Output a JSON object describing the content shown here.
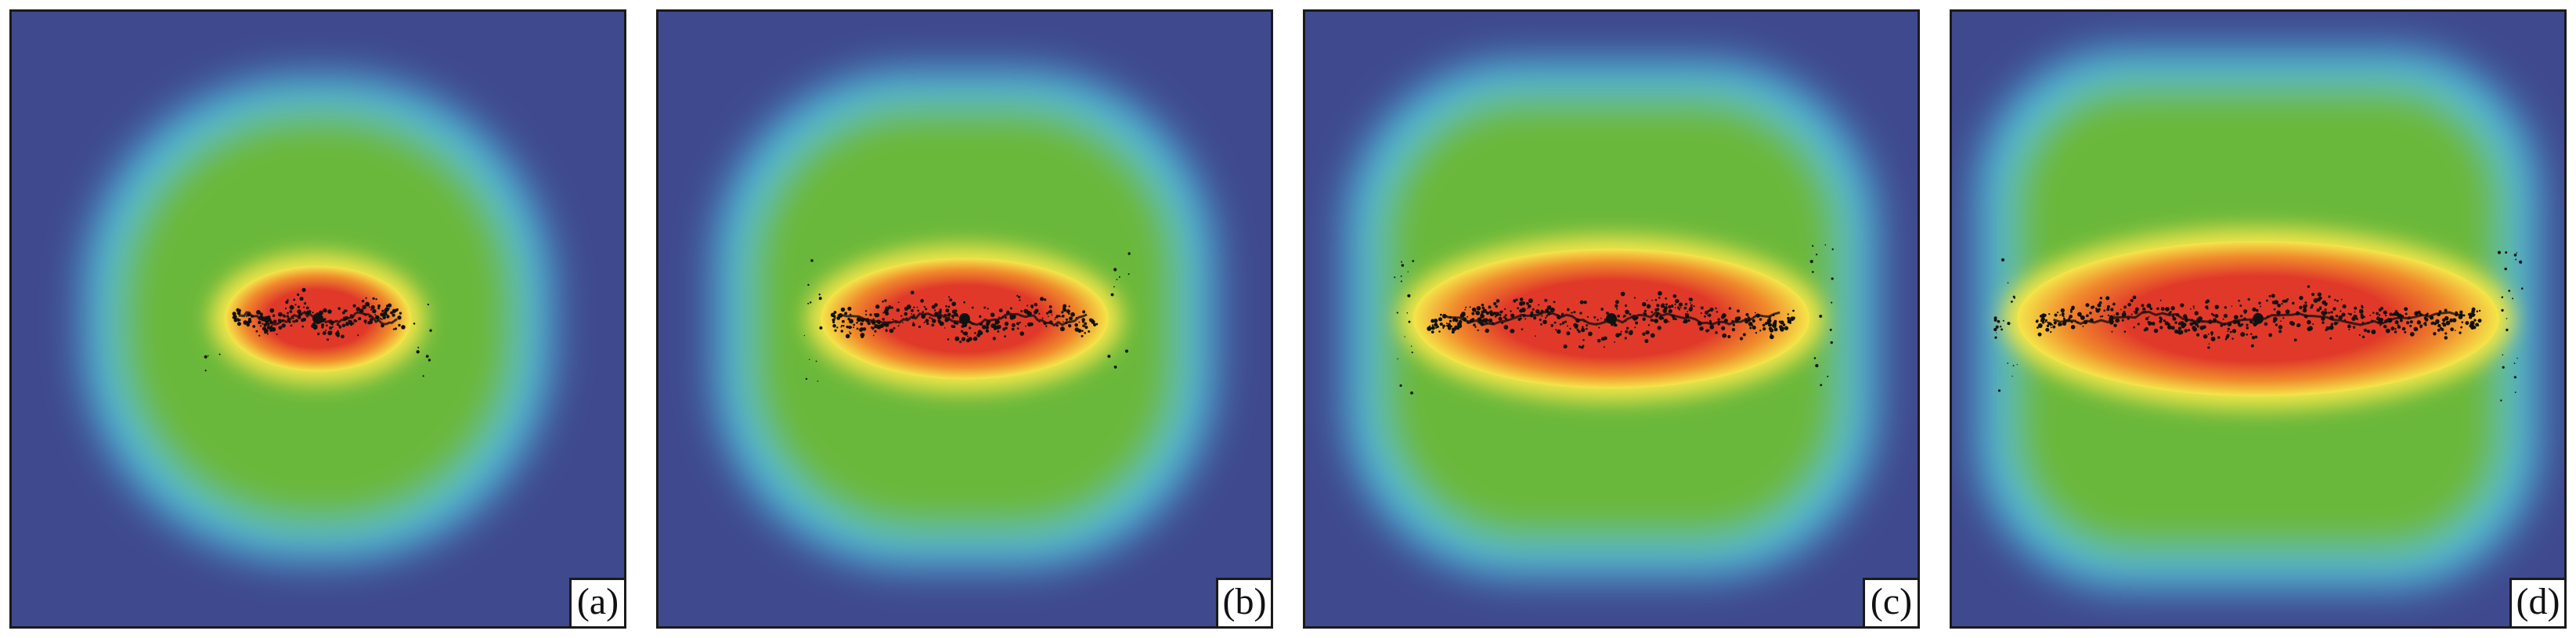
{
  "panels": [
    {
      "label": "(a)"
    },
    {
      "label": "(b)"
    },
    {
      "label": "(c)"
    },
    {
      "label": "(d)"
    }
  ],
  "colors": {
    "background": "#3f4a8e",
    "cyan_ring": "#4fc3e8",
    "green": "#6bb83a",
    "yellow": "#f4e64a",
    "orange": "#f08a2c",
    "red": "#e0392a",
    "particles": "#111111"
  }
}
